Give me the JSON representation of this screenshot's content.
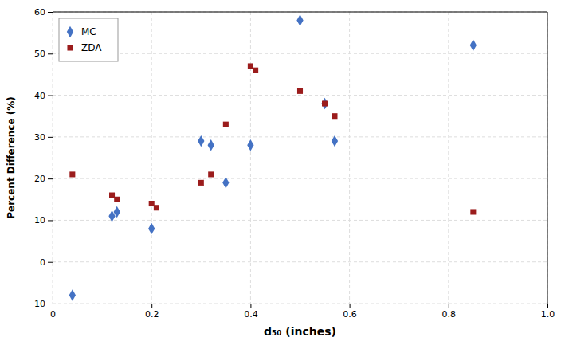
{
  "chart_data": {
    "type": "scatter",
    "xlabel": "d₅₀ (inches)",
    "ylabel": "Percent Difference (%)",
    "series": [
      {
        "name": "MC",
        "color": "#4472C4",
        "marker": "diamond",
        "x": [
          0.04,
          0.12,
          0.13,
          0.2,
          0.3,
          0.32,
          0.35,
          0.4,
          0.5,
          0.55,
          0.57,
          0.85
        ],
        "values": [
          -8,
          11,
          12,
          8,
          29,
          28,
          19,
          28,
          58,
          38,
          29,
          52
        ]
      },
      {
        "name": "ZDA",
        "color": "#9B1C1C",
        "marker": "square",
        "x": [
          0.04,
          0.12,
          0.13,
          0.2,
          0.21,
          0.3,
          0.32,
          0.35,
          0.4,
          0.41,
          0.5,
          0.55,
          0.57,
          0.85
        ],
        "values": [
          21,
          16,
          15,
          14,
          13,
          19,
          21,
          33,
          47,
          46,
          41,
          38,
          35,
          12
        ]
      }
    ],
    "xlim": [
      0,
      1.0
    ],
    "ylim": [
      -10,
      60
    ],
    "xticks": [
      0,
      0.2,
      0.4,
      0.6,
      0.8,
      {
        "value": 1.0,
        "label": "1.0"
      }
    ],
    "yticks": [
      {
        "value": -10,
        "label": "−10"
      },
      0,
      10,
      20,
      30,
      40,
      50,
      60
    ],
    "grid": true,
    "legend": "upper left"
  }
}
